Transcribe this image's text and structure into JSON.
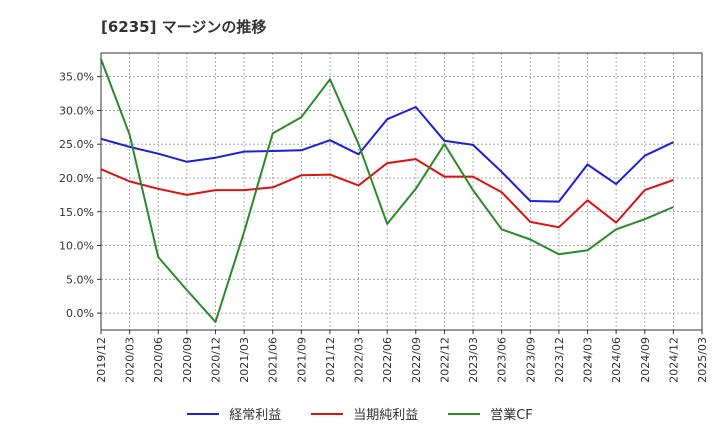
{
  "chart_data": {
    "type": "line",
    "title": "[6235]  マージンの推移",
    "x": [
      "2019/12",
      "2020/03",
      "2020/06",
      "2020/09",
      "2020/12",
      "2021/03",
      "2021/06",
      "2021/09",
      "2021/12",
      "2022/03",
      "2022/06",
      "2022/09",
      "2022/12",
      "2023/03",
      "2023/06",
      "2023/09",
      "2023/12",
      "2024/03",
      "2024/06",
      "2024/09",
      "2024/12",
      "2025/03"
    ],
    "ylim": [
      -2.5,
      38.5
    ],
    "yticks": [
      0,
      5,
      10,
      15,
      20,
      25,
      30,
      35
    ],
    "ytick_labels": [
      "0.0%",
      "5.0%",
      "10.0%",
      "15.0%",
      "20.0%",
      "25.0%",
      "30.0%",
      "35.0%"
    ],
    "grid": true,
    "legend_position": "bottom",
    "series": [
      {
        "name": "経常利益",
        "color": "#1f1fd6",
        "values": [
          25.8,
          24.6,
          23.6,
          22.4,
          23.0,
          23.9,
          24.0,
          24.1,
          25.6,
          23.5,
          28.7,
          30.5,
          25.5,
          24.9,
          20.9,
          16.6,
          16.5,
          22.0,
          19.1,
          23.3,
          25.3,
          null
        ]
      },
      {
        "name": "当期純利益",
        "color": "#dd1111",
        "values": [
          21.3,
          19.5,
          18.4,
          17.5,
          18.2,
          18.2,
          18.6,
          20.4,
          20.5,
          18.9,
          22.2,
          22.8,
          20.2,
          20.2,
          17.9,
          13.5,
          12.7,
          16.7,
          13.4,
          18.2,
          19.7,
          null
        ]
      },
      {
        "name": "営業CF",
        "color": "#2a8a2a",
        "values": [
          37.6,
          26.4,
          8.3,
          3.4,
          -1.3,
          12.0,
          26.6,
          29.0,
          34.6,
          25.0,
          13.2,
          18.4,
          25.0,
          18.2,
          12.4,
          10.9,
          8.7,
          9.3,
          12.4,
          13.9,
          15.7,
          null
        ]
      }
    ]
  }
}
